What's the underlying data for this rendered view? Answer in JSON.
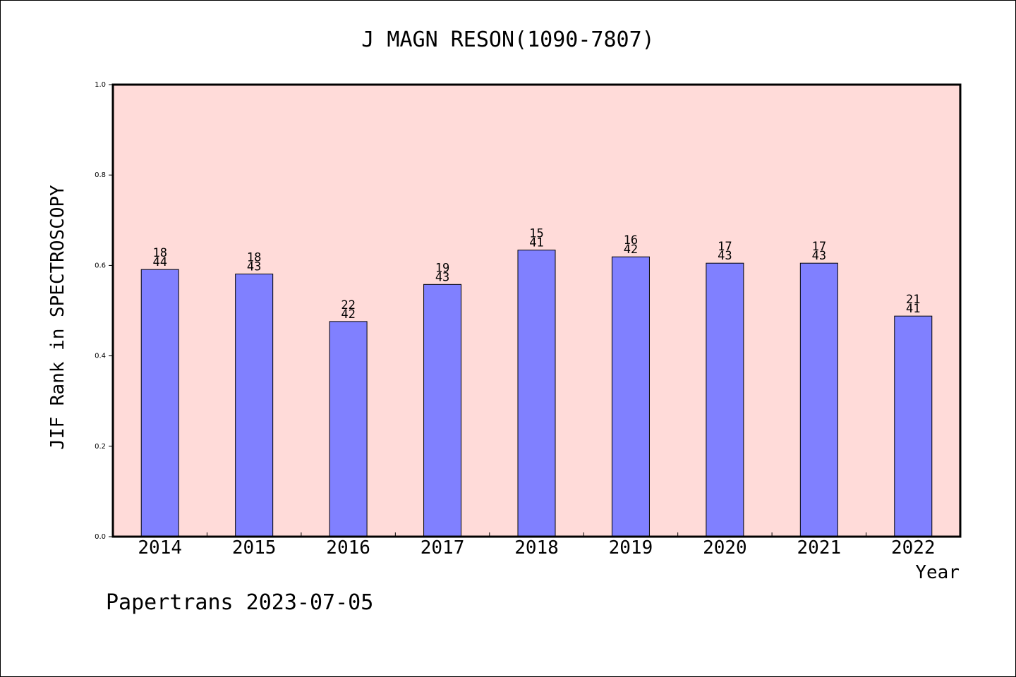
{
  "chart_data": {
    "type": "bar",
    "title": "J MAGN RESON(1090-7807)",
    "xlabel": "Year",
    "ylabel": "JIF Rank in SPECTROSCOPY",
    "ylim": [
      0,
      1.0
    ],
    "yticks": [
      "0.0",
      "0.2",
      "0.4",
      "0.6",
      "0.8",
      "1.0"
    ],
    "categories": [
      "2014",
      "2015",
      "2016",
      "2017",
      "2018",
      "2019",
      "2020",
      "2021",
      "2022"
    ],
    "values": [
      0.591,
      0.581,
      0.476,
      0.558,
      0.634,
      0.619,
      0.605,
      0.605,
      0.488
    ],
    "bar_labels": [
      {
        "top": "18",
        "bottom": "44"
      },
      {
        "top": "18",
        "bottom": "43"
      },
      {
        "top": "22",
        "bottom": "42"
      },
      {
        "top": "19",
        "bottom": "43"
      },
      {
        "top": "15",
        "bottom": "41"
      },
      {
        "top": "16",
        "bottom": "42"
      },
      {
        "top": "17",
        "bottom": "43"
      },
      {
        "top": "17",
        "bottom": "43"
      },
      {
        "top": "21",
        "bottom": "41"
      }
    ],
    "grid": false,
    "colors": {
      "plot_bg": "#ffdbd9",
      "bar": "#8080ff",
      "bar_edge": "#000000"
    }
  },
  "footer": "Papertrans 2023-07-05"
}
